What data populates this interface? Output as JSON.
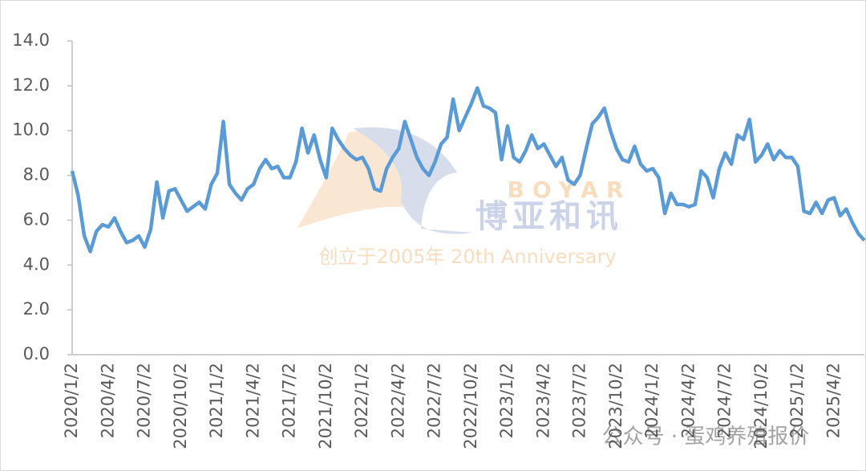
{
  "chart_data": {
    "type": "line",
    "watermark": {
      "brand": "BOYAR",
      "name": "博亚和讯",
      "tagline": "创立于2005年 20th Anniversary",
      "account": "公众号 · 蛋鸡养殖报价"
    },
    "categories": [
      "2020/1/2",
      null,
      null,
      null,
      null,
      null,
      "2020/4/2",
      null,
      null,
      null,
      null,
      null,
      "2020/7/2",
      null,
      null,
      null,
      null,
      null,
      "2020/10/2",
      null,
      null,
      null,
      null,
      null,
      "2021/1/2",
      null,
      null,
      null,
      null,
      null,
      "2021/4/2",
      null,
      null,
      null,
      null,
      null,
      "2021/7/2",
      null,
      null,
      null,
      null,
      null,
      "2021/10/2",
      null,
      null,
      null,
      null,
      null,
      "2022/1/2",
      null,
      null,
      null,
      null,
      null,
      "2022/4/2",
      null,
      null,
      null,
      null,
      null,
      "2022/7/2",
      null,
      null,
      null,
      null,
      null,
      "2022/10/2",
      null,
      null,
      null,
      null,
      null,
      "2023/1/2",
      null,
      null,
      null,
      null,
      null,
      "2023/4/2",
      null,
      null,
      null,
      null,
      null,
      "2023/7/2",
      null,
      null,
      null,
      null,
      null,
      "2023/10/2",
      null,
      null,
      null,
      null,
      null,
      "2024/1/2",
      null,
      null,
      null,
      null,
      null,
      "2024/4/2",
      null,
      null,
      null,
      null,
      null,
      "2024/7/2",
      null,
      null,
      null,
      null,
      null,
      "2024/10/2",
      null,
      null,
      null,
      null,
      null,
      "2025/1/2",
      null,
      null,
      null,
      null,
      null,
      "2025/4/2",
      null,
      null,
      null,
      null,
      null
    ],
    "series": [
      {
        "color": "#5b9bd5",
        "values": [
          8.2,
          7.1,
          5.3,
          4.6,
          5.5,
          5.8,
          5.7,
          6.1,
          5.5,
          5.0,
          5.1,
          5.3,
          4.8,
          5.6,
          7.7,
          6.1,
          7.3,
          7.4,
          6.9,
          6.4,
          6.6,
          6.8,
          6.5,
          7.6,
          8.1,
          10.4,
          7.6,
          7.2,
          6.9,
          7.4,
          7.6,
          8.3,
          8.7,
          8.3,
          8.4,
          7.9,
          7.9,
          8.6,
          10.1,
          9.0,
          9.8,
          8.7,
          7.9,
          10.1,
          9.6,
          9.2,
          8.9,
          8.7,
          8.8,
          8.3,
          7.4,
          7.3,
          8.3,
          8.8,
          9.2,
          10.4,
          9.6,
          8.8,
          8.3,
          8.0,
          8.6,
          9.4,
          9.7,
          11.4,
          10.0,
          10.6,
          11.2,
          11.9,
          11.1,
          11.0,
          10.8,
          8.7,
          10.2,
          8.8,
          8.6,
          9.1,
          9.8,
          9.2,
          9.4,
          8.9,
          8.4,
          8.8,
          7.8,
          7.6,
          8.0,
          9.2,
          10.3,
          10.6,
          11.0,
          10.0,
          9.2,
          8.7,
          8.6,
          9.3,
          8.5,
          8.2,
          8.3,
          7.9,
          6.3,
          7.2,
          6.7,
          6.7,
          6.6,
          6.7,
          8.2,
          7.9,
          7.0,
          8.3,
          9.0,
          8.5,
          9.8,
          9.6,
          10.5,
          8.6,
          8.9,
          9.4,
          8.7,
          9.1,
          8.8,
          8.8,
          8.4,
          6.4,
          6.3,
          6.8,
          6.3,
          6.9,
          7.0,
          6.2,
          6.5,
          5.9,
          5.4,
          5.1
        ]
      }
    ],
    "ylim": [
      0,
      14
    ],
    "yticks": [
      {
        "value": 0,
        "label": "0.0"
      },
      {
        "value": 2,
        "label": "2.0"
      },
      {
        "value": 4,
        "label": "4.0"
      },
      {
        "value": 6,
        "label": "6.0"
      },
      {
        "value": 8,
        "label": "8.0"
      },
      {
        "value": 10,
        "label": "10.0"
      },
      {
        "value": 12,
        "label": "12.0"
      },
      {
        "value": 14,
        "label": "14.0"
      }
    ],
    "grid": false
  }
}
